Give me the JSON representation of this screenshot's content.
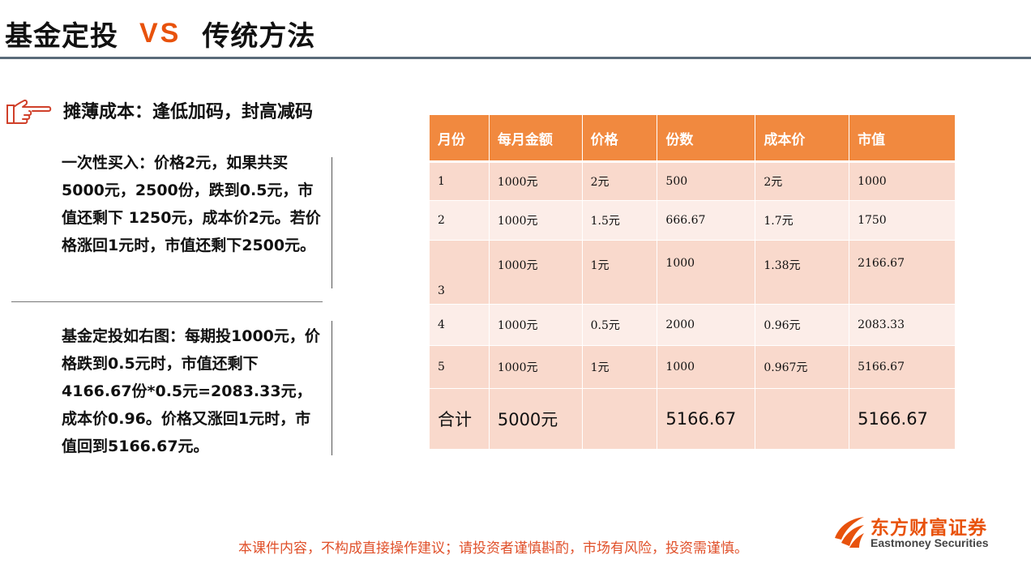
{
  "header": {
    "title_left": "基金定投",
    "title_vs": "VS",
    "title_right": "传统方法"
  },
  "subtitle": "摊薄成本：逢低加码，封高减码",
  "paragraphs": {
    "p1": "一次性买入：价格2元，如果共买5000元，2500份，跌到0.5元，市值还剩下 1250元，成本价2元。若价格涨回1元时，市值还剩下2500元。",
    "p2": "基金定投如右图：每期投1000元，价格跌到0.5元时，市值还剩下4166.67份*0.5元=2083.33元，成本价0.96。价格又涨回1元时，市值回到5166.67元。"
  },
  "table": {
    "headers": [
      "月份",
      "每月金额",
      "价格",
      "份数",
      "成本价",
      "市值"
    ],
    "rows": [
      [
        "1",
        "1000元",
        "2元",
        "500",
        "2元",
        "1000"
      ],
      [
        "2",
        "1000元",
        "1.5元",
        "666.67",
        "1.7元",
        "1750"
      ],
      [
        "3",
        "1000元",
        "1元",
        "1000",
        "1.38元",
        "2166.67"
      ],
      [
        "4",
        "1000元",
        "0.5元",
        "2000",
        "0.96元",
        "2083.33"
      ],
      [
        "5",
        "1000元",
        "1元",
        "1000",
        "0.967元",
        "5166.67"
      ]
    ],
    "total": [
      "合计",
      "5000元",
      "",
      "5166.67",
      "",
      "5166.67"
    ]
  },
  "disclaimer": "本课件内容，不构成直接操作建议；请投资者谨慎斟酌，市场有风险，投资需谨慎。",
  "logo": {
    "cn": "东方财富证券",
    "en": "Eastmoney Securities"
  },
  "colors": {
    "accent": "#e8520c",
    "table_header": "#f1893f",
    "row_dark": "#f9d9cc",
    "row_light": "#fcede8",
    "disclaimer": "#e0502a"
  },
  "icons": [
    "pointing-hand-icon",
    "eastmoney-logo-icon"
  ]
}
